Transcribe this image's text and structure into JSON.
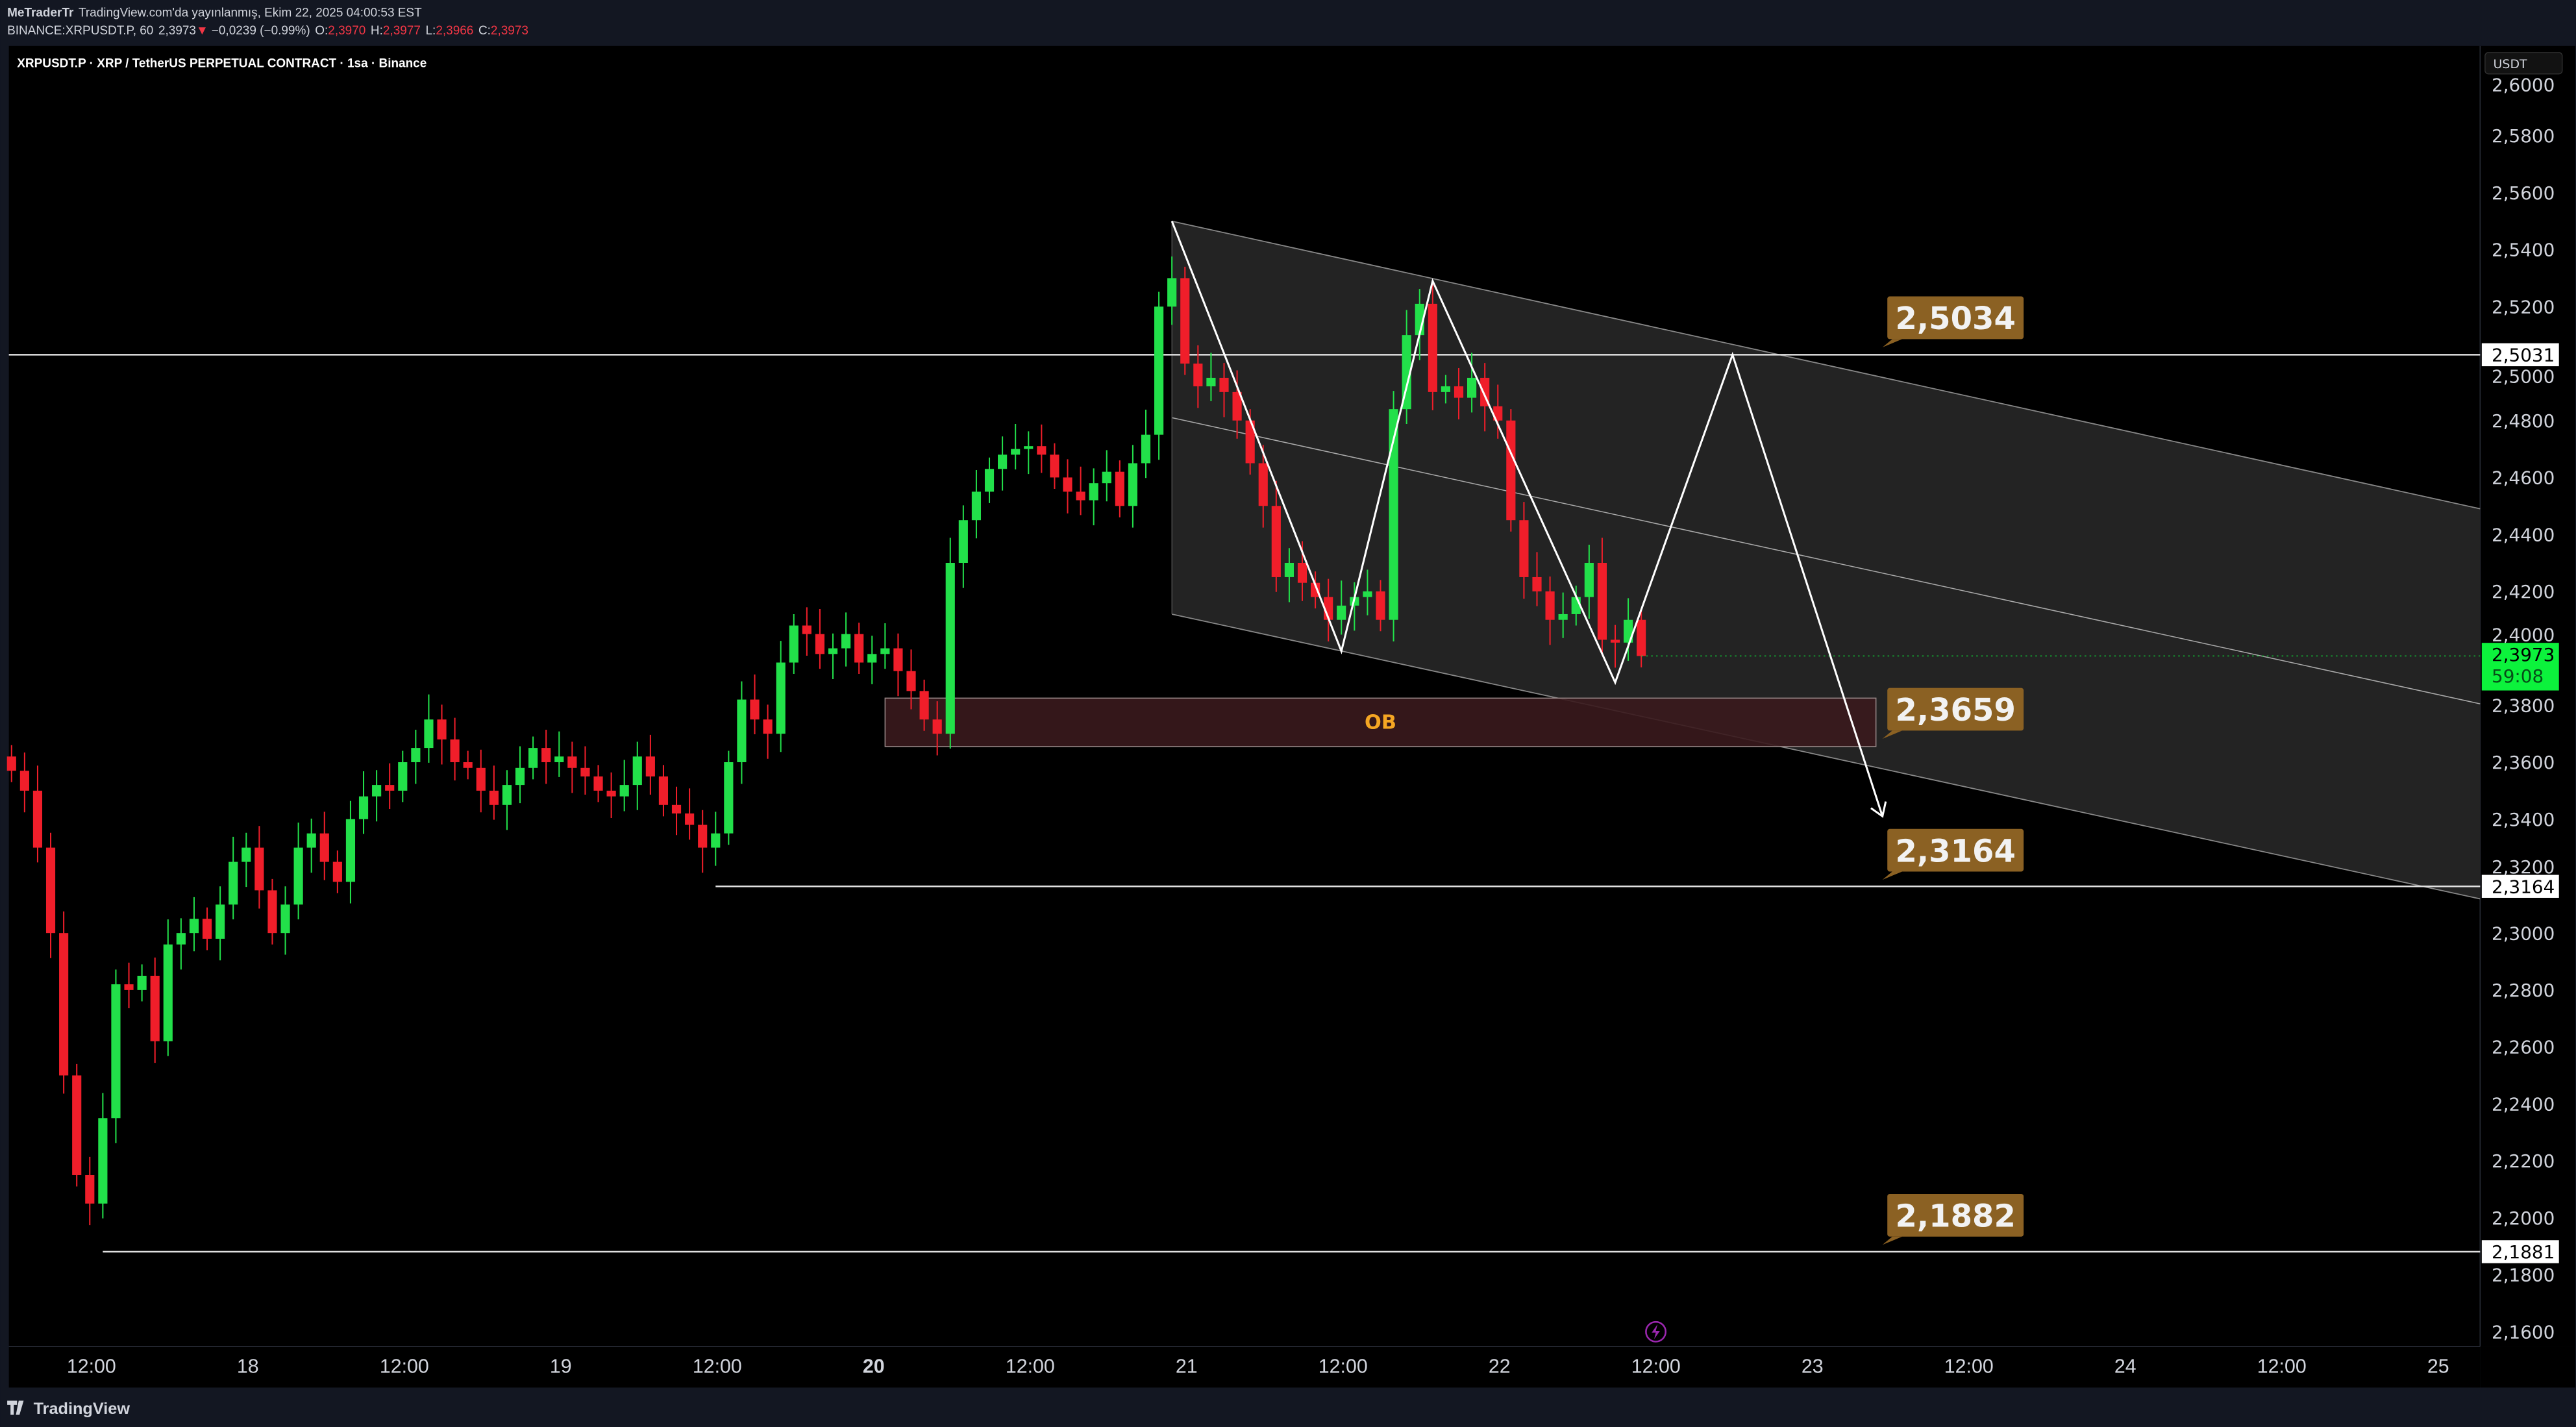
{
  "header": {
    "author": "MeTraderTr",
    "published": "TradingView.com'da yayınlanmış, Ekim 22, 2025 04:00:53 EST",
    "symbol_line": "BINANCE:XRPUSDT.P, 60",
    "price": "2,3973",
    "change": "−0,0239 (−0.99%)",
    "ohlc": [
      {
        "label": "O:",
        "value": "2,3970"
      },
      {
        "label": "H:",
        "value": "2,3977"
      },
      {
        "label": "L:",
        "value": "2,3966"
      },
      {
        "label": "C:",
        "value": "2,3973"
      }
    ]
  },
  "chart_title": "XRPUSDT.P · XRP / TetherUS PERPETUAL CONTRACT · 1sa · Binance",
  "currency_button": "USDT",
  "footer": {
    "logo": "TradingView"
  },
  "colors": {
    "up": "#22e04a",
    "down": "#f01e2a",
    "callout": "#8b6123",
    "ob_text": "#f5a623",
    "current_price": "#0cf23c"
  },
  "annotations": {
    "ob_label": "OB",
    "callouts": [
      {
        "text": "2,5034",
        "price": 2.5034
      },
      {
        "text": "2,3659",
        "price": 2.3659
      },
      {
        "text": "2,3164",
        "price": 2.3164
      },
      {
        "text": "2,1882",
        "price": 2.1882
      }
    ],
    "level_tags": [
      {
        "text": "2,5031",
        "price": 2.5031
      },
      {
        "text": "2,3164",
        "price": 2.3164
      },
      {
        "text": "2,1881",
        "price": 2.1881
      }
    ],
    "current_price_tag": {
      "price": "2,3973",
      "countdown": "59:08"
    }
  },
  "chart_data": {
    "type": "candlestick",
    "title": "XRPUSDT.P · XRP / TetherUS PERPETUAL CONTRACT · 1sa · Binance",
    "interval": "1h",
    "x_start": "2025-10-17 06:00",
    "ylim": [
      2.15,
      2.61
    ],
    "y_ticks": [
      "2,6000",
      "2,5800",
      "2,5600",
      "2,5400",
      "2,5200",
      "2,5000",
      "2,4800",
      "2,4600",
      "2,4400",
      "2,4200",
      "2,4000",
      "2,3800",
      "2,3600",
      "2,3400",
      "2,3200",
      "2,3000",
      "2,2800",
      "2,2600",
      "2,2400",
      "2,2200",
      "2,2000",
      "2,1800",
      "2,1600"
    ],
    "x_ticks": [
      {
        "label": "12:00",
        "hour": 12
      },
      {
        "label": "18",
        "hour": 24
      },
      {
        "label": "12:00",
        "hour": 36
      },
      {
        "label": "19",
        "hour": 48
      },
      {
        "label": "12:00",
        "hour": 60
      },
      {
        "label": "20",
        "hour": 72,
        "bold": true
      },
      {
        "label": "12:00",
        "hour": 84
      },
      {
        "label": "21",
        "hour": 96
      },
      {
        "label": "12:00",
        "hour": 108
      },
      {
        "label": "22",
        "hour": 120
      },
      {
        "label": "12:00",
        "hour": 132
      },
      {
        "label": "23",
        "hour": 144
      },
      {
        "label": "12:00",
        "hour": 156
      },
      {
        "label": "24",
        "hour": 168
      },
      {
        "label": "12:00",
        "hour": 180
      },
      {
        "label": "25",
        "hour": 192
      }
    ],
    "closes": [
      2.357,
      2.35,
      2.33,
      2.3,
      2.25,
      2.215,
      2.205,
      2.235,
      2.282,
      2.28,
      2.285,
      2.262,
      2.296,
      2.3,
      2.305,
      2.298,
      2.31,
      2.325,
      2.33,
      2.315,
      2.3,
      2.31,
      2.33,
      2.335,
      2.325,
      2.318,
      2.34,
      2.348,
      2.352,
      2.35,
      2.36,
      2.365,
      2.375,
      2.368,
      2.36,
      2.358,
      2.35,
      2.345,
      2.352,
      2.358,
      2.365,
      2.36,
      2.362,
      2.358,
      2.355,
      2.35,
      2.348,
      2.352,
      2.362,
      2.355,
      2.345,
      2.342,
      2.338,
      2.33,
      2.335,
      2.36,
      2.382,
      2.375,
      2.37,
      2.395,
      2.408,
      2.405,
      2.398,
      2.4,
      2.405,
      2.395,
      2.398,
      2.4,
      2.392,
      2.385,
      2.375,
      2.37,
      2.43,
      2.445,
      2.455,
      2.463,
      2.468,
      2.47,
      2.471,
      2.468,
      2.46,
      2.455,
      2.452,
      2.458,
      2.462,
      2.45,
      2.465,
      2.475,
      2.52,
      2.53,
      2.5,
      2.492,
      2.495,
      2.49,
      2.48,
      2.465,
      2.45,
      2.425,
      2.43,
      2.423,
      2.418,
      2.41,
      2.415,
      2.418,
      2.42,
      2.41,
      2.484,
      2.51,
      2.521,
      2.49,
      2.492,
      2.488,
      2.495,
      2.485,
      2.48,
      2.445,
      2.425,
      2.42,
      2.41,
      2.412,
      2.418,
      2.43,
      2.403,
      2.402,
      2.41,
      2.3973
    ],
    "first_open": 2.362,
    "channel": {
      "start_hour": 95,
      "end_hour": 196,
      "top": [
        2.55,
        2.449
      ],
      "bottom": [
        2.412,
        2.312
      ]
    },
    "ob_zone": {
      "start_hour": 73,
      "end_hour": 149,
      "top": 2.3825,
      "bottom": 2.3655
    },
    "projection_path": [
      {
        "hour": 95,
        "price": 2.55
      },
      {
        "hour": 108,
        "price": 2.399
      },
      {
        "hour": 115,
        "price": 2.529
      },
      {
        "hour": 129,
        "price": 2.388
      },
      {
        "hour": 138,
        "price": 2.5031
      },
      {
        "hour": 149.5,
        "price": 2.341
      }
    ],
    "levels": [
      {
        "price": 2.5031,
        "start_hour": 0
      },
      {
        "price": 2.3164,
        "start_hour": 60
      },
      {
        "price": 2.1881,
        "start_hour": 13
      }
    ]
  }
}
